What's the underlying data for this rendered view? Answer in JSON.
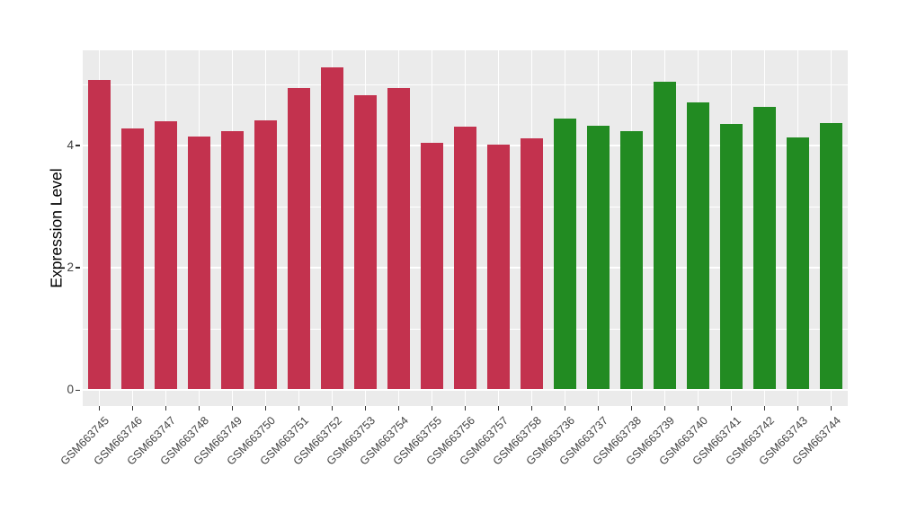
{
  "figure": {
    "background": "#FFFFFF",
    "panel_background": "#EBEBEB",
    "gridline_color": "#FFFFFF",
    "tick_color": "#333333",
    "tick_label_color": "#424242",
    "axis_title_color": "#000000"
  },
  "chart_data": {
    "type": "bar",
    "title": "",
    "xlabel": "",
    "ylabel": "Expression Level",
    "ylim": [
      -0.26,
      5.56
    ],
    "yticks": [
      {
        "value": 0,
        "label": "0"
      },
      {
        "value": 2,
        "label": "2"
      },
      {
        "value": 4,
        "label": "4"
      }
    ],
    "yticks_minor": [
      1,
      3,
      5
    ],
    "grid": "white major+minor horizontal lines, white vertical line at each category center",
    "legend_position": "none",
    "x_label_rotation_deg": 45,
    "bar_width_fraction": 0.69,
    "bars": [
      {
        "label": "GSM663745",
        "value": 5.08,
        "color": "#C3324E"
      },
      {
        "label": "GSM663746",
        "value": 4.28,
        "color": "#C3324E"
      },
      {
        "label": "GSM663747",
        "value": 4.4,
        "color": "#C3324E"
      },
      {
        "label": "GSM663748",
        "value": 4.15,
        "color": "#C3324E"
      },
      {
        "label": "GSM663749",
        "value": 4.24,
        "color": "#C3324E"
      },
      {
        "label": "GSM663750",
        "value": 4.41,
        "color": "#C3324E"
      },
      {
        "label": "GSM663751",
        "value": 4.94,
        "color": "#C3324E"
      },
      {
        "label": "GSM663752",
        "value": 5.28,
        "color": "#C3324E"
      },
      {
        "label": "GSM663753",
        "value": 4.82,
        "color": "#C3324E"
      },
      {
        "label": "GSM663754",
        "value": 4.94,
        "color": "#C3324E"
      },
      {
        "label": "GSM663755",
        "value": 4.04,
        "color": "#C3324E"
      },
      {
        "label": "GSM663756",
        "value": 4.31,
        "color": "#C3324E"
      },
      {
        "label": "GSM663757",
        "value": 4.01,
        "color": "#C3324E"
      },
      {
        "label": "GSM663758",
        "value": 4.12,
        "color": "#C3324E"
      },
      {
        "label": "GSM663736",
        "value": 4.45,
        "color": "#228B22"
      },
      {
        "label": "GSM663737",
        "value": 4.32,
        "color": "#228B22"
      },
      {
        "label": "GSM663738",
        "value": 4.24,
        "color": "#228B22"
      },
      {
        "label": "GSM663739",
        "value": 5.04,
        "color": "#228B22"
      },
      {
        "label": "GSM663740",
        "value": 4.71,
        "color": "#228B22"
      },
      {
        "label": "GSM663741",
        "value": 4.36,
        "color": "#228B22"
      },
      {
        "label": "GSM663742",
        "value": 4.64,
        "color": "#228B22"
      },
      {
        "label": "GSM663743",
        "value": 4.14,
        "color": "#228B22"
      },
      {
        "label": "GSM663744",
        "value": 4.37,
        "color": "#228B22"
      }
    ]
  }
}
